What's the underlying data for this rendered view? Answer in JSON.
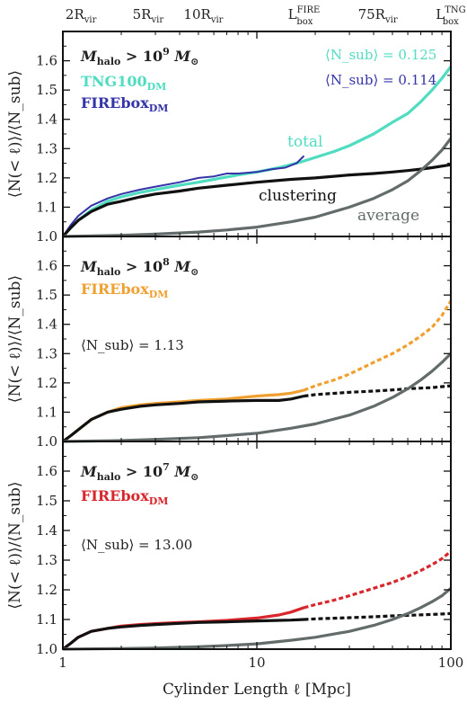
{
  "figure": {
    "xlabel": "Cylinder Length ℓ [Mpc]",
    "x_ticks": [
      {
        "value": 1,
        "label": "1"
      },
      {
        "value": 10,
        "label": "10"
      },
      {
        "value": 100,
        "label": "100"
      }
    ],
    "top_ticks": [
      {
        "value": 1.24,
        "main": "2R",
        "sub": "vir",
        "sup": ""
      },
      {
        "value": 2.75,
        "main": "5R",
        "sub": "vir",
        "sup": ""
      },
      {
        "value": 5.3,
        "main": "10R",
        "sub": "vir",
        "sup": ""
      },
      {
        "value": 17.5,
        "main": "L",
        "sub": "box",
        "sup": "FIRE"
      },
      {
        "value": 42,
        "main": "75R",
        "sub": "vir",
        "sup": ""
      },
      {
        "value": 100,
        "main": "L",
        "sub": "box",
        "sup": "TNG"
      }
    ],
    "colors": {
      "tng": "#4fdcc0",
      "fire_top": "#3434a8",
      "fire_mid": "#f0a030",
      "fire_bot": "#d8262c",
      "clustering": "#111111",
      "average": "#646b6b"
    }
  },
  "chart_data": [
    {
      "type": "line",
      "panel": "top",
      "ylabel": "⟨N(< ℓ)⟩/⟨N_sub⟩",
      "xscale": "log",
      "xlim": [
        1,
        100
      ],
      "ylim": [
        1.0,
        1.7
      ],
      "y_ticks": [
        "1.0",
        "1.1",
        "1.2",
        "1.3",
        "1.4",
        "1.5",
        "1.6"
      ],
      "mass_cut": {
        "prefix": "M",
        "sub": "halo",
        "rel": "> 10",
        "exp": "9",
        "unit": "M",
        "unit_sub": "⊙"
      },
      "legend": [
        {
          "text": "TNG100",
          "sub": "DM",
          "color": "#4fdcc0"
        },
        {
          "text": "FIREbox",
          "sub": "DM",
          "color": "#3434a8"
        }
      ],
      "nsub_labels": [
        {
          "text": "⟨N_sub⟩ = 0.125",
          "color": "#4fdcc0"
        },
        {
          "text": "⟨N_sub⟩ = 0.114",
          "color": "#3434a8"
        }
      ],
      "curve_labels": [
        {
          "text": "total",
          "color": "#4fdcc0"
        },
        {
          "text": "clustering",
          "color": "#111111"
        },
        {
          "text": "average",
          "color": "#646b6b"
        }
      ],
      "series": [
        {
          "name": "TNG100_DM total",
          "color": "#4fdcc0",
          "x": [
            1,
            1.1,
            1.2,
            1.4,
            1.7,
            2,
            2.5,
            3,
            4,
            5,
            6,
            8,
            10,
            13,
            17,
            20,
            25,
            30,
            40,
            50,
            60,
            70,
            80,
            90,
            100
          ],
          "y": [
            1.0,
            1.03,
            1.055,
            1.09,
            1.12,
            1.135,
            1.15,
            1.16,
            1.175,
            1.185,
            1.195,
            1.21,
            1.22,
            1.235,
            1.255,
            1.27,
            1.29,
            1.31,
            1.35,
            1.39,
            1.42,
            1.46,
            1.5,
            1.54,
            1.58
          ]
        },
        {
          "name": "FIREbox_DM total",
          "color": "#3434a8",
          "x": [
            1,
            1.1,
            1.2,
            1.4,
            1.7,
            2,
            2.5,
            3,
            4,
            5,
            6,
            7,
            8,
            10,
            12,
            14,
            16,
            17.5
          ],
          "y": [
            1.0,
            1.04,
            1.07,
            1.105,
            1.13,
            1.145,
            1.16,
            1.17,
            1.185,
            1.2,
            1.205,
            1.215,
            1.215,
            1.22,
            1.23,
            1.235,
            1.25,
            1.275
          ]
        },
        {
          "name": "clustering",
          "color": "#111111",
          "x": [
            1,
            1.1,
            1.2,
            1.4,
            1.7,
            2,
            2.5,
            3,
            4,
            5,
            7,
            10,
            15,
            20,
            30,
            40,
            50,
            60,
            70,
            80,
            100
          ],
          "y": [
            1.0,
            1.03,
            1.055,
            1.085,
            1.11,
            1.12,
            1.135,
            1.145,
            1.155,
            1.165,
            1.175,
            1.185,
            1.195,
            1.2,
            1.21,
            1.215,
            1.22,
            1.225,
            1.23,
            1.235,
            1.245
          ]
        },
        {
          "name": "average",
          "color": "#646b6b",
          "x": [
            1,
            2,
            3,
            5,
            7,
            10,
            15,
            20,
            30,
            40,
            50,
            60,
            70,
            80,
            90,
            100
          ],
          "y": [
            1.0,
            1.004,
            1.008,
            1.015,
            1.022,
            1.032,
            1.05,
            1.066,
            1.1,
            1.13,
            1.16,
            1.19,
            1.225,
            1.26,
            1.295,
            1.335
          ]
        }
      ]
    },
    {
      "type": "line",
      "panel": "middle",
      "ylabel": "⟨N(< ℓ)⟩/⟨N_sub⟩",
      "xscale": "log",
      "xlim": [
        1,
        100
      ],
      "ylim": [
        1.0,
        1.7
      ],
      "y_ticks": [
        "1.0",
        "1.1",
        "1.2",
        "1.3",
        "1.4",
        "1.5",
        "1.6"
      ],
      "mass_cut": {
        "prefix": "M",
        "sub": "halo",
        "rel": "> 10",
        "exp": "8",
        "unit": "M",
        "unit_sub": "⊙"
      },
      "legend": [
        {
          "text": "FIREbox",
          "sub": "DM",
          "color": "#f0a030"
        }
      ],
      "nsub_labels": [
        {
          "text": "⟨N_sub⟩ = 1.13",
          "color": "#222222"
        }
      ],
      "series": [
        {
          "name": "FIREbox_DM total",
          "color": "#f0a030",
          "x": [
            1,
            1.1,
            1.2,
            1.4,
            1.7,
            2,
            2.5,
            3,
            4,
            5,
            7,
            10,
            13,
            15,
            17.5
          ],
          "y": [
            1.0,
            1.02,
            1.04,
            1.075,
            1.1,
            1.115,
            1.125,
            1.13,
            1.135,
            1.14,
            1.145,
            1.155,
            1.16,
            1.165,
            1.175
          ]
        },
        {
          "name": "FIREbox_DM total (extrapolated)",
          "color": "#f0a030",
          "dashed": true,
          "x": [
            17.5,
            20,
            25,
            30,
            40,
            50,
            60,
            70,
            80,
            90,
            100
          ],
          "y": [
            1.175,
            1.19,
            1.21,
            1.23,
            1.27,
            1.3,
            1.33,
            1.36,
            1.39,
            1.43,
            1.48
          ]
        },
        {
          "name": "clustering",
          "color": "#111111",
          "x": [
            1,
            1.1,
            1.2,
            1.4,
            1.7,
            2,
            2.5,
            3,
            4,
            5,
            7,
            10,
            13,
            15,
            17.5
          ],
          "y": [
            1.0,
            1.02,
            1.04,
            1.075,
            1.1,
            1.11,
            1.12,
            1.125,
            1.13,
            1.135,
            1.138,
            1.14,
            1.14,
            1.145,
            1.155
          ]
        },
        {
          "name": "clustering (extrapolated)",
          "color": "#111111",
          "dashed": true,
          "x": [
            17.5,
            20,
            30,
            40,
            50,
            60,
            80,
            100
          ],
          "y": [
            1.155,
            1.16,
            1.168,
            1.172,
            1.176,
            1.18,
            1.184,
            1.19
          ]
        },
        {
          "name": "average",
          "color": "#646b6b",
          "x": [
            1,
            2,
            3,
            5,
            7,
            10,
            15,
            20,
            30,
            40,
            50,
            60,
            70,
            80,
            90,
            100
          ],
          "y": [
            1.0,
            1.003,
            1.007,
            1.013,
            1.02,
            1.028,
            1.045,
            1.06,
            1.09,
            1.12,
            1.15,
            1.18,
            1.21,
            1.24,
            1.27,
            1.3
          ]
        }
      ]
    },
    {
      "type": "line",
      "panel": "bottom",
      "ylabel": "⟨N(< ℓ)⟩/⟨N_sub⟩",
      "xscale": "log",
      "xlim": [
        1,
        100
      ],
      "ylim": [
        1.0,
        1.7
      ],
      "y_ticks": [
        "1.0",
        "1.1",
        "1.2",
        "1.3",
        "1.4",
        "1.5",
        "1.6"
      ],
      "mass_cut": {
        "prefix": "M",
        "sub": "halo",
        "rel": "> 10",
        "exp": "7",
        "unit": "M",
        "unit_sub": "⊙"
      },
      "legend": [
        {
          "text": "FIREbox",
          "sub": "DM",
          "color": "#d8262c"
        }
      ],
      "nsub_labels": [
        {
          "text": "⟨N_sub⟩ = 13.00",
          "color": "#222222"
        }
      ],
      "series": [
        {
          "name": "FIREbox_DM total",
          "color": "#d8262c",
          "x": [
            1,
            1.1,
            1.2,
            1.4,
            1.7,
            2,
            2.5,
            3,
            4,
            5,
            7,
            10,
            13,
            15,
            17.5
          ],
          "y": [
            1.0,
            1.02,
            1.04,
            1.06,
            1.07,
            1.078,
            1.083,
            1.086,
            1.09,
            1.092,
            1.097,
            1.105,
            1.115,
            1.125,
            1.14
          ]
        },
        {
          "name": "FIREbox_DM total (extrapolated)",
          "color": "#d8262c",
          "dashed": true,
          "x": [
            17.5,
            20,
            25,
            30,
            40,
            50,
            60,
            70,
            80,
            90,
            100
          ],
          "y": [
            1.14,
            1.15,
            1.165,
            1.18,
            1.205,
            1.225,
            1.245,
            1.265,
            1.285,
            1.305,
            1.33
          ]
        },
        {
          "name": "clustering",
          "color": "#111111",
          "x": [
            1,
            1.1,
            1.2,
            1.4,
            1.7,
            2,
            2.5,
            3,
            4,
            5,
            7,
            10,
            13,
            15,
            17.5
          ],
          "y": [
            1.0,
            1.02,
            1.04,
            1.06,
            1.07,
            1.075,
            1.08,
            1.083,
            1.087,
            1.09,
            1.092,
            1.095,
            1.097,
            1.098,
            1.1
          ]
        },
        {
          "name": "clustering (extrapolated)",
          "color": "#111111",
          "dashed": true,
          "x": [
            17.5,
            20,
            30,
            40,
            50,
            60,
            80,
            100
          ],
          "y": [
            1.1,
            1.102,
            1.106,
            1.109,
            1.112,
            1.114,
            1.117,
            1.12
          ]
        },
        {
          "name": "average",
          "color": "#646b6b",
          "x": [
            1,
            2,
            3,
            5,
            7,
            10,
            15,
            20,
            30,
            40,
            50,
            60,
            70,
            80,
            90,
            100
          ],
          "y": [
            1.0,
            1.002,
            1.004,
            1.008,
            1.012,
            1.018,
            1.03,
            1.04,
            1.06,
            1.08,
            1.1,
            1.12,
            1.14,
            1.16,
            1.18,
            1.205
          ]
        }
      ]
    }
  ]
}
